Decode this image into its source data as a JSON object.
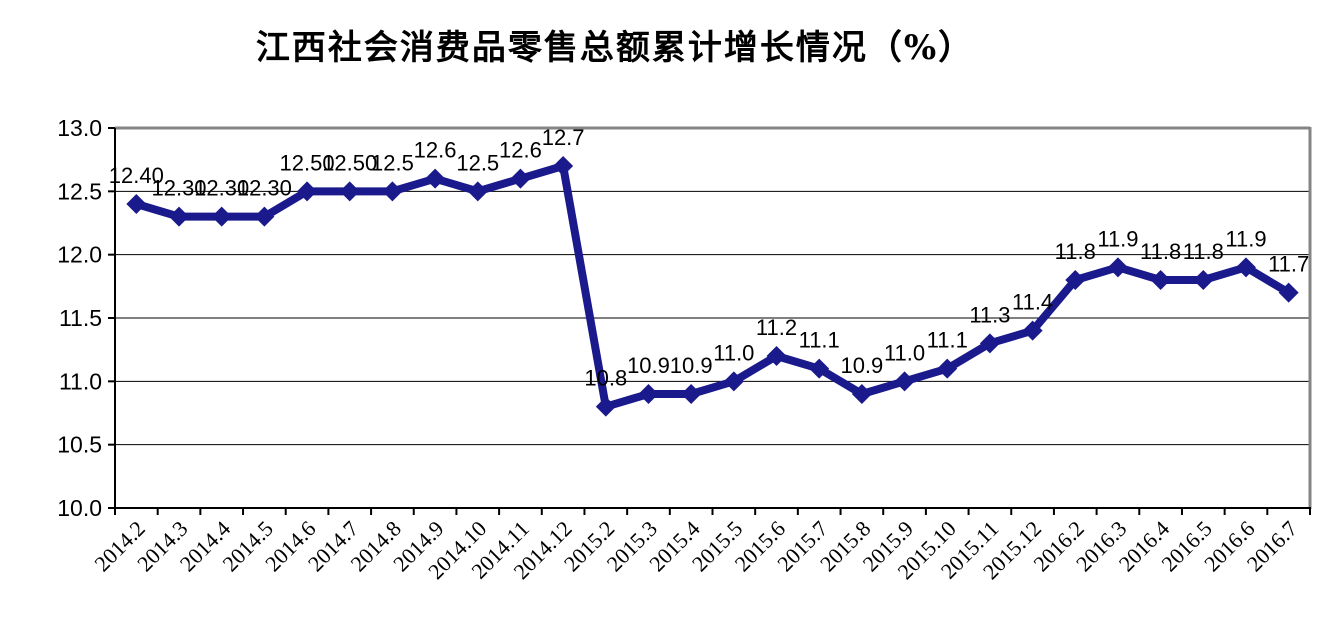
{
  "chart_data": {
    "type": "line",
    "title": "江西社会消费品零售总额累计增长情况（%）",
    "categories": [
      "2014.2",
      "2014.3",
      "2014.4",
      "2014.5",
      "2014.6",
      "2014.7",
      "2014.8",
      "2014.9",
      "2014.10",
      "2014.11",
      "2014.12",
      "2015.2",
      "2015.3",
      "2015.4",
      "2015.5",
      "2015.6",
      "2015.7",
      "2015.8",
      "2015.9",
      "2015.10",
      "2015.11",
      "2015.12",
      "2016.2",
      "2016.3",
      "2016.4",
      "2016.5",
      "2016.6",
      "2016.7"
    ],
    "values": [
      12.4,
      12.3,
      12.3,
      12.3,
      12.5,
      12.5,
      12.5,
      12.6,
      12.5,
      12.6,
      12.7,
      10.8,
      10.9,
      10.9,
      11.0,
      11.2,
      11.1,
      10.9,
      11.0,
      11.1,
      11.3,
      11.4,
      11.8,
      11.9,
      11.8,
      11.8,
      11.9,
      11.7
    ],
    "point_labels": [
      "12.40",
      "12.30",
      "12.30",
      "12.30",
      "12.50",
      "12.50",
      "12.5",
      "12.6",
      "12.5",
      "12.6",
      "12.7",
      "10.8",
      "10.9",
      "10.9",
      "11.0",
      "11.2",
      "11.1",
      "10.9",
      "11.0",
      "11.1",
      "11.3",
      "11.4",
      "11.8",
      "11.9",
      "11.8",
      "11.8",
      "11.9",
      "11.7"
    ],
    "xlabel": "",
    "ylabel": "",
    "ylim": [
      10.0,
      13.0
    ],
    "ytick_step": 0.5,
    "ytick_labels": [
      "10.0",
      "10.5",
      "11.0",
      "11.5",
      "12.0",
      "12.5",
      "13.0"
    ],
    "grid": "horizontal",
    "legend_position": "none",
    "series_color": "#1a1a8c",
    "grid_color": "#000000",
    "axis_color": "#000000",
    "plot_border_color": "#848484",
    "marker": "diamond"
  }
}
